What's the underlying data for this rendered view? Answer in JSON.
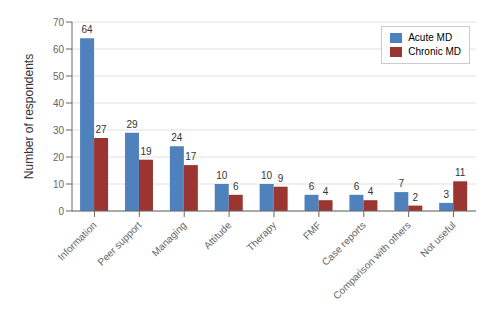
{
  "chart_data": {
    "type": "bar",
    "categories": [
      "Information",
      "Peer support",
      "Managing",
      "Attitude",
      "Therapy",
      "FMF",
      "Case reports",
      "Comparison with others",
      "Not useful"
    ],
    "series": [
      {
        "name": "Acute MD",
        "color": "#4F81BD",
        "values": [
          64,
          29,
          24,
          10,
          10,
          6,
          6,
          7,
          3
        ]
      },
      {
        "name": "Chronic MD",
        "color": "#9B3532",
        "values": [
          27,
          19,
          17,
          6,
          9,
          4,
          4,
          2,
          11
        ]
      }
    ],
    "ylabel": "Number of respondents",
    "ylim": [
      0,
      70
    ],
    "yticks": [
      0,
      10,
      20,
      30,
      40,
      50,
      60,
      70
    ],
    "grid": true,
    "legend": "upper right",
    "data_labels": true
  }
}
